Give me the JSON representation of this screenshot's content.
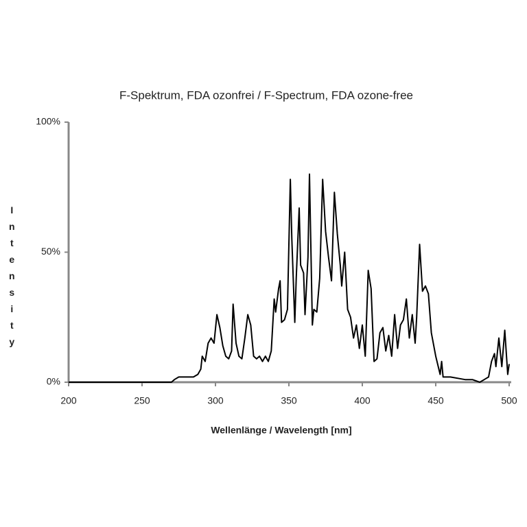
{
  "chart_data": {
    "type": "line",
    "title": "F-Spektrum, FDA ozonfrei / F-Spectrum, FDA ozone-free",
    "x_label": "Wellenlänge / Wavelength [nm]",
    "y_label": "Intensity",
    "xlim": [
      200,
      500
    ],
    "xticks": [
      200,
      250,
      300,
      350,
      400,
      450,
      500
    ],
    "ylim": [
      0,
      100
    ],
    "yticks": [
      {
        "value": 0,
        "label": "0%"
      },
      {
        "value": 50,
        "label": "50%"
      },
      {
        "value": 100,
        "label": "100%"
      }
    ],
    "series": [
      {
        "name": "F-Spektrum",
        "color": "#000000",
        "x": [
          200,
          270,
          272,
          275,
          280,
          285,
          288,
          290,
          291,
          293,
          295,
          297,
          299,
          301,
          303,
          305,
          307,
          309,
          311,
          312,
          314,
          316,
          318,
          320,
          322,
          324,
          326,
          328,
          330,
          332,
          334,
          336,
          338,
          340,
          341,
          343,
          344,
          345,
          347,
          349,
          351,
          352,
          354,
          355,
          357,
          358,
          360,
          361,
          363,
          364,
          366,
          367,
          369,
          371,
          373,
          375,
          377,
          379,
          381,
          383,
          385,
          386,
          388,
          390,
          392,
          394,
          396,
          398,
          400,
          402,
          404,
          406,
          408,
          410,
          412,
          414,
          416,
          418,
          420,
          422,
          424,
          426,
          428,
          430,
          432,
          434,
          436,
          437,
          439,
          441,
          443,
          445,
          447,
          450,
          453,
          454,
          455,
          460,
          470,
          475,
          480,
          483,
          486,
          488,
          490,
          491,
          493,
          495,
          497,
          499,
          500
        ],
        "values": [
          0,
          0,
          1,
          2,
          2,
          2,
          3,
          5,
          10,
          8,
          15,
          17,
          15,
          26,
          21,
          14,
          10,
          9,
          12,
          30,
          15,
          10,
          9,
          17,
          26,
          22,
          10,
          9,
          10,
          8,
          10,
          8,
          12,
          32,
          27,
          36,
          39,
          23,
          24,
          28,
          78,
          55,
          23,
          40,
          67,
          45,
          42,
          26,
          48,
          80,
          22,
          28,
          27,
          40,
          78,
          58,
          48,
          39,
          73,
          57,
          45,
          37,
          50,
          28,
          25,
          17,
          22,
          13,
          22,
          10,
          43,
          36,
          8,
          9,
          19,
          21,
          12,
          18,
          10,
          26,
          13,
          22,
          24,
          32,
          17,
          26,
          15,
          25,
          53,
          35,
          37,
          34,
          19,
          10,
          3,
          8,
          2,
          2,
          1,
          1,
          0,
          1,
          2,
          8,
          11,
          6,
          17,
          6,
          20,
          3,
          7
        ]
      }
    ]
  }
}
